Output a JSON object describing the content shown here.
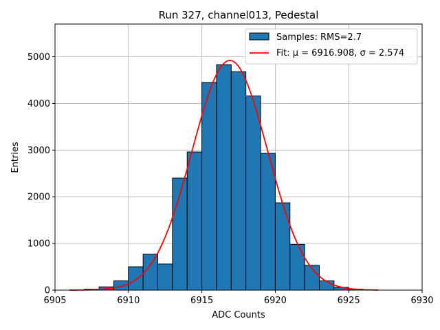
{
  "chart_data": {
    "type": "bar",
    "title": "Run 327, channel013, Pedestal",
    "xlabel": "ADC Counts",
    "ylabel": "Entries",
    "xlim": [
      6905,
      6930
    ],
    "ylim": [
      0,
      5700
    ],
    "xticks": [
      6905,
      6910,
      6915,
      6920,
      6925,
      6930
    ],
    "yticks": [
      0,
      1000,
      2000,
      3000,
      4000,
      5000
    ],
    "grid": true,
    "legend_position": "top-right",
    "histogram": {
      "name": "Samples: RMS=2.7",
      "color": "#1f77b4",
      "edgecolor": "#000000",
      "bin_width": 1,
      "bin_starts": [
        6906,
        6907,
        6908,
        6909,
        6910,
        6911,
        6912,
        6913,
        6914,
        6915,
        6916,
        6917,
        6918,
        6919,
        6920,
        6921,
        6922,
        6923,
        6924,
        6925,
        6926
      ],
      "values": [
        5,
        20,
        70,
        200,
        500,
        770,
        560,
        2400,
        2960,
        4450,
        4830,
        4680,
        4160,
        2930,
        1870,
        980,
        530,
        200,
        60,
        20,
        5
      ]
    },
    "fit": {
      "name": "Fit: μ = 6916.908, σ = 2.574",
      "color": "#ff0000",
      "mu": 6916.908,
      "sigma": 2.574,
      "amplitude": 4920,
      "x_range": [
        6906,
        6927
      ]
    }
  }
}
